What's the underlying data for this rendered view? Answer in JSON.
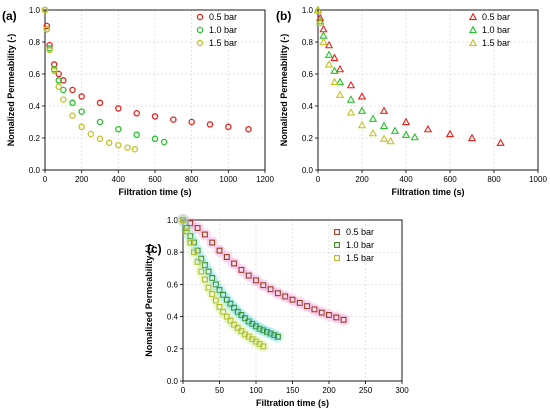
{
  "chart_data": [
    {
      "panel_label": "(a)",
      "type": "scatter",
      "marker": "circle",
      "xlabel": "Filtration time (s)",
      "ylabel": "Nomalized Permeability (-)",
      "xlim": [
        0,
        1200
      ],
      "ylim": [
        0.0,
        1.0
      ],
      "xticks": [
        0,
        200,
        400,
        600,
        800,
        1000,
        1200
      ],
      "yticks": [
        0.0,
        0.2,
        0.4,
        0.6,
        0.8,
        1.0
      ],
      "grid": true,
      "legend": "top-right",
      "series": [
        {
          "name": "0.5 bar",
          "color": "#e8211b",
          "x": [
            0,
            10,
            25,
            50,
            75,
            100,
            150,
            200,
            300,
            400,
            500,
            600,
            700,
            800,
            900,
            1000,
            1110
          ],
          "y": [
            1.0,
            0.9,
            0.78,
            0.66,
            0.6,
            0.56,
            0.5,
            0.46,
            0.42,
            0.385,
            0.355,
            0.335,
            0.315,
            0.3,
            0.285,
            0.27,
            0.255
          ]
        },
        {
          "name": "1.0 bar",
          "color": "#26c22a",
          "x": [
            0,
            10,
            25,
            50,
            75,
            100,
            150,
            200,
            300,
            400,
            500,
            600,
            650
          ],
          "y": [
            1.0,
            0.88,
            0.76,
            0.63,
            0.56,
            0.5,
            0.42,
            0.365,
            0.3,
            0.255,
            0.22,
            0.195,
            0.175
          ]
        },
        {
          "name": "1.5 bar",
          "color": "#c4c227",
          "x": [
            0,
            10,
            25,
            50,
            75,
            100,
            150,
            200,
            250,
            300,
            350,
            400,
            450,
            490
          ],
          "y": [
            1.0,
            0.88,
            0.75,
            0.62,
            0.52,
            0.44,
            0.34,
            0.27,
            0.225,
            0.195,
            0.17,
            0.155,
            0.14,
            0.13
          ]
        }
      ]
    },
    {
      "panel_label": "(b)",
      "type": "scatter",
      "marker": "triangle",
      "xlabel": "Filtration time (s)",
      "ylabel": "Nomalized Permeability (-)",
      "xlim": [
        0,
        1000
      ],
      "ylim": [
        0.0,
        1.0
      ],
      "xticks": [
        0,
        200,
        400,
        600,
        800,
        1000
      ],
      "yticks": [
        0.0,
        0.2,
        0.4,
        0.6,
        0.8,
        1.0
      ],
      "grid": true,
      "legend": "top-right",
      "series": [
        {
          "name": "0.5 bar",
          "color": "#e8211b",
          "x": [
            0,
            10,
            25,
            50,
            75,
            100,
            150,
            200,
            300,
            400,
            500,
            600,
            700,
            830
          ],
          "y": [
            1.0,
            0.95,
            0.88,
            0.78,
            0.7,
            0.63,
            0.53,
            0.46,
            0.37,
            0.3,
            0.255,
            0.225,
            0.2,
            0.17
          ]
        },
        {
          "name": "1.0 bar",
          "color": "#26c22a",
          "x": [
            0,
            10,
            25,
            50,
            75,
            100,
            150,
            200,
            250,
            300,
            350,
            400,
            440
          ],
          "y": [
            1.0,
            0.93,
            0.84,
            0.72,
            0.62,
            0.55,
            0.44,
            0.37,
            0.32,
            0.275,
            0.245,
            0.22,
            0.205
          ]
        },
        {
          "name": "1.5 bar",
          "color": "#c4c227",
          "x": [
            0,
            10,
            25,
            50,
            75,
            100,
            150,
            200,
            250,
            300,
            330
          ],
          "y": [
            1.0,
            0.92,
            0.8,
            0.66,
            0.55,
            0.47,
            0.36,
            0.28,
            0.23,
            0.195,
            0.18
          ]
        }
      ]
    },
    {
      "panel_label": "(c)",
      "type": "scatter",
      "marker": "square",
      "xlabel": "Filtration time (s)",
      "ylabel": "Nomalized Permeability (-)",
      "xlim": [
        0,
        300
      ],
      "ylim": [
        0.0,
        1.0
      ],
      "xticks": [
        0,
        50,
        100,
        150,
        200,
        250,
        300
      ],
      "yticks": [
        0.0,
        0.2,
        0.4,
        0.6,
        0.8,
        1.0
      ],
      "grid": true,
      "legend": "top-right",
      "series": [
        {
          "name": "0.5 bar",
          "color": "#9a3b1e",
          "halo": "#f07ad9",
          "x": [
            0,
            10,
            20,
            30,
            40,
            50,
            60,
            70,
            80,
            90,
            100,
            110,
            120,
            130,
            140,
            150,
            160,
            170,
            180,
            190,
            200,
            210,
            220
          ],
          "y": [
            1.0,
            0.98,
            0.95,
            0.91,
            0.86,
            0.81,
            0.77,
            0.73,
            0.69,
            0.655,
            0.625,
            0.595,
            0.57,
            0.545,
            0.525,
            0.505,
            0.485,
            0.465,
            0.445,
            0.425,
            0.41,
            0.395,
            0.38
          ]
        },
        {
          "name": "1.0 bar",
          "color": "#3f8a1f",
          "halo": "#5fe0e8",
          "x": [
            0,
            5,
            10,
            15,
            20,
            25,
            30,
            35,
            40,
            45,
            50,
            55,
            60,
            65,
            70,
            75,
            80,
            85,
            90,
            95,
            100,
            105,
            110,
            115,
            120,
            125,
            130
          ],
          "y": [
            1.0,
            0.95,
            0.9,
            0.86,
            0.81,
            0.76,
            0.72,
            0.68,
            0.64,
            0.6,
            0.565,
            0.535,
            0.505,
            0.48,
            0.455,
            0.43,
            0.41,
            0.39,
            0.37,
            0.355,
            0.34,
            0.325,
            0.315,
            0.305,
            0.295,
            0.285,
            0.275
          ]
        },
        {
          "name": "1.5 bar",
          "color": "#b5b82a",
          "halo": "#c9f08a",
          "x": [
            0,
            5,
            10,
            15,
            20,
            25,
            30,
            35,
            40,
            45,
            50,
            55,
            60,
            65,
            70,
            75,
            80,
            85,
            90,
            95,
            100,
            105,
            110
          ],
          "y": [
            1.0,
            0.93,
            0.86,
            0.8,
            0.74,
            0.68,
            0.63,
            0.58,
            0.54,
            0.5,
            0.46,
            0.43,
            0.4,
            0.375,
            0.35,
            0.33,
            0.31,
            0.29,
            0.275,
            0.26,
            0.245,
            0.23,
            0.215
          ]
        }
      ]
    }
  ]
}
